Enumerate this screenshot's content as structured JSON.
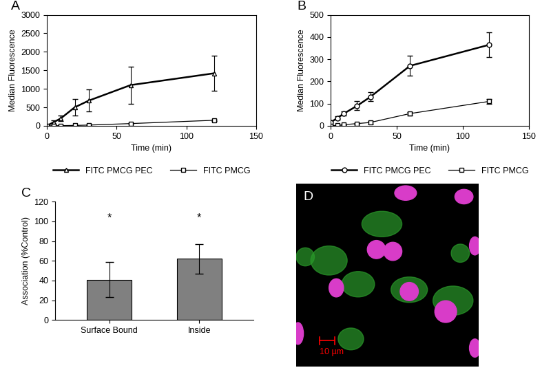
{
  "chart_data": [
    {
      "type": "line",
      "title": "A",
      "x_label": "Time (min)",
      "y_label": "Median Fluorescence",
      "x": [
        0,
        5,
        10,
        20,
        30,
        60,
        120
      ],
      "series": [
        {
          "name": "FITC PMCG PEC",
          "color": "#000000",
          "marker": "triangle",
          "values": [
            0,
            100,
            200,
            500,
            680,
            1100,
            1420
          ],
          "errors": [
            20,
            50,
            80,
            230,
            300,
            500,
            480
          ]
        },
        {
          "name": "FITC PMCG",
          "color": "#000000",
          "marker": "square",
          "values": [
            0,
            0,
            5,
            10,
            20,
            60,
            150
          ],
          "errors": [
            2,
            2,
            3,
            5,
            8,
            15,
            20
          ]
        }
      ],
      "xlim": [
        0,
        150
      ],
      "xticks": [
        0,
        50,
        100,
        150
      ],
      "ylim": [
        0,
        3000
      ],
      "yticks": [
        0,
        500,
        1000,
        1500,
        2000,
        2500,
        3000
      ],
      "legend": "bottom"
    },
    {
      "type": "line",
      "title": "B",
      "x_label": "Time (min)",
      "y_label": "Median Fluorescence",
      "x": [
        0,
        5,
        10,
        20,
        30,
        60,
        120
      ],
      "series": [
        {
          "name": "FITC PMCG PEC",
          "color": "#000000",
          "marker": "circle",
          "values": [
            15,
            35,
            55,
            90,
            130,
            270,
            365
          ],
          "errors": [
            10,
            8,
            10,
            20,
            20,
            45,
            55
          ]
        },
        {
          "name": "FITC PMCG",
          "color": "#000000",
          "marker": "square",
          "values": [
            0,
            2,
            5,
            10,
            15,
            55,
            110
          ],
          "errors": [
            2,
            2,
            2,
            3,
            5,
            8,
            10
          ]
        }
      ],
      "xlim": [
        0,
        150
      ],
      "xticks": [
        0,
        50,
        100,
        150
      ],
      "ylim": [
        0,
        500
      ],
      "yticks": [
        0,
        100,
        200,
        300,
        400,
        500
      ],
      "legend": "bottom"
    },
    {
      "type": "bar",
      "title": "C",
      "y_label": "Association (%Control)",
      "categories": [
        "Surface Bound",
        "Inside"
      ],
      "values": [
        41,
        62
      ],
      "errors": [
        18,
        15
      ],
      "significance": [
        "*",
        "*"
      ],
      "color": "#808080",
      "ylim": [
        0,
        120
      ],
      "yticks": [
        0,
        20,
        40,
        60,
        80,
        100,
        120
      ]
    }
  ],
  "image": {
    "title": "D",
    "scale_bar": "10 µm"
  }
}
